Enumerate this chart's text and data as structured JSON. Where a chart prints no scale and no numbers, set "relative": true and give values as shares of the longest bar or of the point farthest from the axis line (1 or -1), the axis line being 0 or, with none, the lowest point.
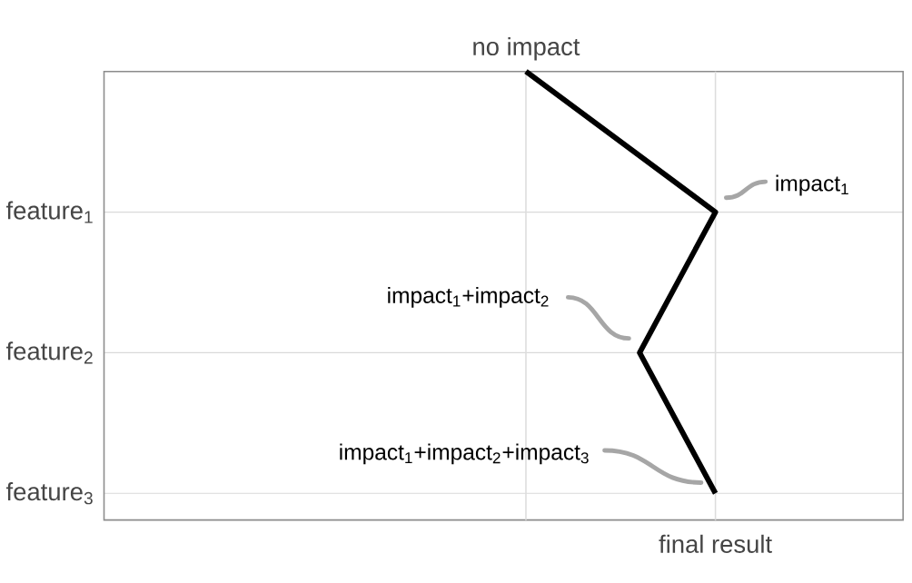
{
  "chart_data": {
    "type": "line",
    "orientation": "horizontal",
    "relative": true,
    "categories": [
      null,
      "feature$_{1}$",
      "feature$_{2}$",
      "feature$_{3}$"
    ],
    "values": [
      0,
      1,
      0.6,
      1
    ],
    "color": "#000000",
    "grid": "y",
    "marker": "none",
    "line_style": "solid",
    "ref_lines": [
      {
        "axis": "x",
        "value": 0,
        "label": "no impact",
        "color": "#dddddd"
      },
      {
        "axis": "x",
        "value": 1,
        "label": "final result",
        "color": "#dddddd"
      }
    ],
    "annotations": [
      "impact$_{1}$",
      "impact$_{1}$+impact$_{2}$",
      "impact$_{1}$+impact$_{2}$+impact$_{3}$"
    ]
  }
}
